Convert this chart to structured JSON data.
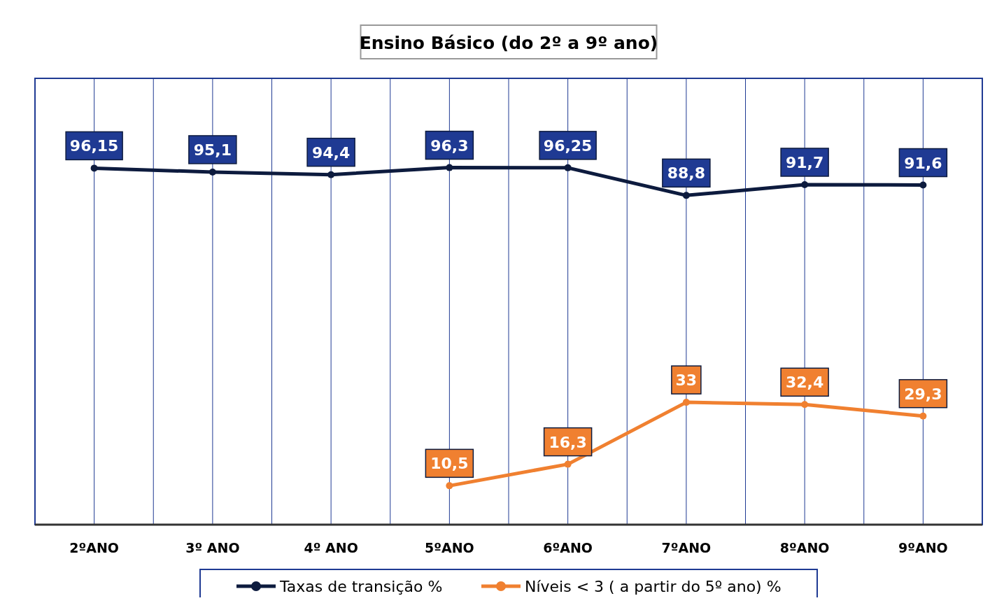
{
  "chart_data": {
    "type": "line",
    "title": "Ensino Básico (do  2º a 9º ano)",
    "categories": [
      "2ºANO",
      "3º ANO",
      "4º ANO",
      "5ºANO",
      "6ºANO",
      "7ºANO",
      "8ºANO",
      "9ºANO"
    ],
    "series": [
      {
        "name": "Taxas de transição %",
        "color": "#0d1b3e",
        "values": [
          96.15,
          95.1,
          94.4,
          96.3,
          96.25,
          88.8,
          91.7,
          91.6
        ],
        "value_labels": [
          "96,15",
          "95,1",
          "94,4",
          "96,3",
          "96,25",
          "88,8",
          "91,7",
          "91,6"
        ]
      },
      {
        "name": "Níveis < 3 ( a partir do 5º ano) %",
        "color": "#f08030",
        "values": [
          null,
          null,
          null,
          10.5,
          16.3,
          33,
          32.4,
          29.3
        ],
        "value_labels": [
          null,
          null,
          null,
          "10,5",
          "16,3",
          "33",
          "32,4",
          "29,3"
        ]
      }
    ],
    "relative": false,
    "grid": "x",
    "legend": "bottom",
    "marker": "circle",
    "line_style": "solid"
  }
}
